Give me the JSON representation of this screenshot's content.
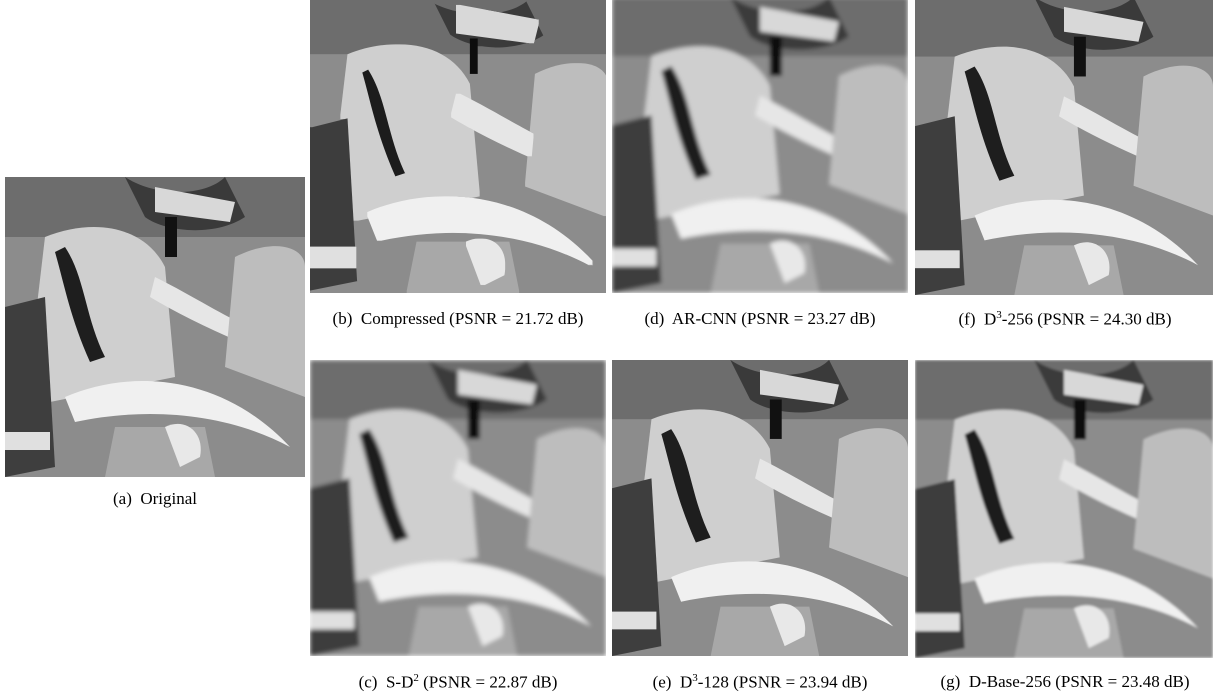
{
  "panels": [
    {
      "tag": "(a)",
      "name": "Original"
    },
    {
      "tag": "(b)",
      "name": "Compressed",
      "psnr": "(PSNR = 21.72 dB)"
    },
    {
      "tag": "(d)",
      "name": "AR-CNN",
      "psnr": "(PSNR = 23.27 dB)"
    },
    {
      "tag": "(f)",
      "name": "D",
      "sup": "3",
      "suffix": "-256",
      "psnr": "(PSNR = 24.30 dB)"
    },
    {
      "tag": "(c)",
      "name": "S-D",
      "sup": "2",
      "psnr": "(PSNR = 22.87 dB)"
    },
    {
      "tag": "(e)",
      "name": "D",
      "sup": "3",
      "suffix": "-128",
      "psnr": "(PSNR = 23.94 dB)"
    },
    {
      "tag": "(g)",
      "name": "D-Base-256",
      "psnr": "(PSNR = 23.48 dB)"
    }
  ]
}
